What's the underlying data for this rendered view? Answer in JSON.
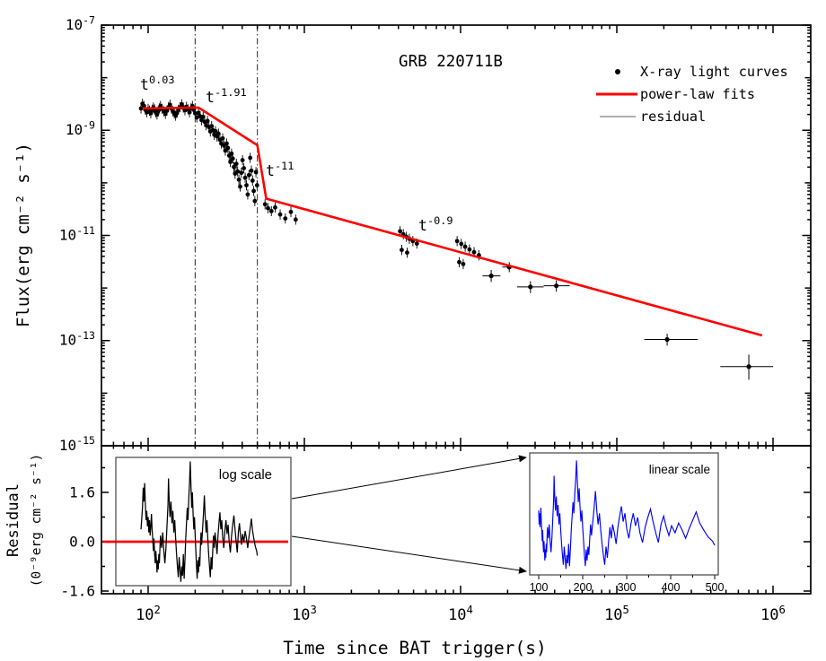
{
  "figure": {
    "title": "GRB 220711B"
  },
  "legend": {
    "items": [
      {
        "label": "X-ray light curves",
        "marker": "dot",
        "color": "#000000"
      },
      {
        "label": "power-law fits",
        "marker": "thick-line",
        "color": "#ff0000"
      },
      {
        "label": "residual",
        "marker": "thin-line",
        "color": "#808080"
      }
    ]
  },
  "axes": {
    "x": {
      "label": "Time since BAT trigger(s)",
      "scale": "log",
      "ticks": [
        {
          "v": 100,
          "label": "10^2"
        },
        {
          "v": 1000,
          "label": "10^3"
        },
        {
          "v": 10000,
          "label": "10^4"
        },
        {
          "v": 100000,
          "label": "10^5"
        },
        {
          "v": 1000000,
          "label": "10^6"
        }
      ]
    },
    "y": {
      "label": "Flux(erg cm⁻² s⁻¹)",
      "scale": "log",
      "ticks": [
        {
          "v": 1e-07,
          "label": "10^-7"
        },
        {
          "v": 1e-09,
          "label": "10^-9"
        },
        {
          "v": 1e-11,
          "label": "10^-11"
        },
        {
          "v": 1e-13,
          "label": "10^-13"
        },
        {
          "v": 1e-15,
          "label": "10^-15"
        }
      ]
    },
    "residual_y": {
      "label_line1": "Residual",
      "label_line2": "(0⁻⁹erg cm⁻² s⁻¹)",
      "ticks": [
        {
          "v": 1.6,
          "label": "1.6"
        },
        {
          "v": 0,
          "label": "0.0"
        },
        {
          "v": -1.6,
          "label": "-1.6"
        }
      ],
      "minor": [
        2.4,
        0.8,
        -0.8
      ]
    }
  },
  "chart_data": {
    "type": "scatter",
    "title": "GRB 220711B",
    "xlabel": "Time since BAT trigger(s)",
    "ylabel": "Flux(erg cm⁻² s⁻¹)",
    "xscale": "log",
    "yscale": "log",
    "xlim": [
      50,
      1750000
    ],
    "ylim": [
      1e-15,
      1e-07
    ],
    "vlines": [
      200,
      500
    ],
    "annotations": [
      {
        "text": "t^0.03"
      },
      {
        "text": "t^-1.91"
      },
      {
        "text": "t^-11"
      },
      {
        "text": "t^-0.9"
      }
    ],
    "series": [
      {
        "name": "X-ray light curves",
        "type": "scatter",
        "color": "#000000",
        "points": [
          [
            90,
            2.6e-09
          ],
          [
            92,
            3.2e-09
          ],
          [
            94,
            2.9e-09
          ],
          [
            96,
            2.45e-09
          ],
          [
            98,
            2.2e-09
          ],
          [
            100,
            2.55e-09
          ],
          [
            102,
            2.35e-09
          ],
          [
            104,
            2.1e-09
          ],
          [
            106,
            2.45e-09
          ],
          [
            108,
            2.7e-09
          ],
          [
            110,
            2.5e-09
          ],
          [
            112,
            2.2e-09
          ],
          [
            114,
            2e-09
          ],
          [
            116,
            2.3e-09
          ],
          [
            118,
            2.6e-09
          ],
          [
            120,
            2.9e-09
          ],
          [
            123,
            2.55e-09
          ],
          [
            126,
            2.3e-09
          ],
          [
            129,
            2.05e-09
          ],
          [
            132,
            2.35e-09
          ],
          [
            135,
            2.75e-09
          ],
          [
            138,
            3.05e-09
          ],
          [
            141,
            2.6e-09
          ],
          [
            144,
            2.3e-09
          ],
          [
            147,
            2.1e-09
          ],
          [
            150,
            1.9e-09
          ],
          [
            153,
            2.15e-09
          ],
          [
            156,
            2.45e-09
          ],
          [
            160,
            2.75e-09
          ],
          [
            164,
            3.1e-09
          ],
          [
            168,
            2.7e-09
          ],
          [
            172,
            2.4e-09
          ],
          [
            176,
            2.8e-09
          ],
          [
            180,
            2.5e-09
          ],
          [
            184,
            2.2e-09
          ],
          [
            188,
            2.6e-09
          ],
          [
            192,
            2.9e-09
          ],
          [
            196,
            2.45e-09
          ],
          [
            200,
            2.1e-09
          ],
          [
            205,
            1.75e-09
          ],
          [
            210,
            2.15e-09
          ],
          [
            215,
            1.85e-09
          ],
          [
            220,
            1.55e-09
          ],
          [
            225,
            1.8e-09
          ],
          [
            230,
            1.45e-09
          ],
          [
            235,
            1.25e-09
          ],
          [
            240,
            1.5e-09
          ],
          [
            245,
            1.15e-09
          ],
          [
            250,
            9.5e-10
          ],
          [
            255,
            1.2e-09
          ],
          [
            260,
            1e-09
          ],
          [
            265,
            8.2e-10
          ],
          [
            270,
            9.6e-10
          ],
          [
            276,
            7.6e-10
          ],
          [
            282,
            8.6e-10
          ],
          [
            288,
            6.6e-10
          ],
          [
            294,
            5.6e-10
          ],
          [
            300,
            7e-10
          ],
          [
            306,
            5.1e-10
          ],
          [
            312,
            4.1e-10
          ],
          [
            318,
            5.6e-10
          ],
          [
            324,
            4.6e-10
          ],
          [
            330,
            3.3e-10
          ],
          [
            336,
            2.5e-10
          ],
          [
            342,
            3.6e-10
          ],
          [
            348,
            2.9e-10
          ],
          [
            354,
            2e-10
          ],
          [
            360,
            1.5e-10
          ],
          [
            367,
            2.3e-10
          ],
          [
            374,
            1.65e-10
          ],
          [
            381,
            1.15e-10
          ],
          [
            388,
            8.5e-11
          ],
          [
            395,
            1.55e-10
          ],
          [
            402,
            2.7e-10
          ],
          [
            410,
            1.9e-10
          ],
          [
            418,
            1.25e-10
          ],
          [
            426,
            9e-11
          ],
          [
            434,
            6e-11
          ],
          [
            442,
            1.4e-10
          ],
          [
            450,
            3e-10
          ],
          [
            458,
            1.7e-10
          ],
          [
            466,
            1.1e-10
          ],
          [
            474,
            7e-11
          ],
          [
            482,
            4.5e-11
          ],
          [
            490,
            1.6e-10
          ],
          [
            498,
            9e-11
          ],
          [
            560,
            3.9e-11
          ],
          [
            585,
            3.3e-11
          ],
          [
            615,
            2.9e-11
          ],
          [
            650,
            3.4e-11
          ],
          [
            700,
            2.5e-11
          ],
          [
            755,
            2.1e-11
          ],
          [
            820,
            2.8e-11
          ],
          [
            880,
            2e-11
          ],
          [
            4100,
            1.2e-11
          ],
          [
            4300,
            1.05e-11
          ],
          [
            4500,
            9.4e-12
          ],
          [
            4700,
            8.6e-12
          ],
          [
            4950,
            7.8e-12
          ],
          [
            5250,
            7e-12
          ],
          [
            4200,
            5.3e-12
          ],
          [
            4550,
            4.7e-12
          ],
          [
            9500,
            7.8e-12
          ],
          [
            10100,
            6.9e-12
          ],
          [
            10700,
            6.1e-12
          ],
          [
            11400,
            5.4e-12
          ],
          [
            12200,
            4.8e-12
          ],
          [
            13100,
            4.2e-12
          ],
          [
            9800,
            3.1e-12
          ],
          [
            10400,
            2.85e-12
          ]
        ]
      },
      {
        "name": "power-law fits",
        "type": "line",
        "color": "#ff0000",
        "breakpoints": [
          [
            92,
            2.6e-09
          ],
          [
            210,
            2.7e-09
          ],
          [
            500,
            5.2e-10
          ],
          [
            570,
            5e-11
          ],
          [
            850000,
            1.25e-13
          ]
        ]
      }
    ],
    "late_points": [
      [
        15700,
        1.7e-12,
        13800,
        18000,
        1.3e-12,
        2.2e-12
      ],
      [
        20500,
        2.5e-12,
        18500,
        23000,
        2e-12,
        3.1e-12
      ],
      [
        28000,
        1.05e-12,
        23000,
        34000,
        8e-13,
        1.35e-12
      ],
      [
        41000,
        1.1e-12,
        34000,
        50000,
        8.5e-13,
        1.4e-12
      ],
      [
        210000,
        1.05e-13,
        150000,
        330000,
        8e-14,
        1.35e-13
      ],
      [
        700000,
        3.2e-14,
        460000,
        1000000,
        1.8e-14,
        5.4e-14
      ]
    ],
    "residual_series": [
      [
        90,
        0.4
      ],
      [
        92,
        1.1
      ],
      [
        93,
        1.75
      ],
      [
        94,
        1.3
      ],
      [
        95,
        1.9
      ],
      [
        96,
        1.2
      ],
      [
        97,
        0.7
      ],
      [
        98,
        1.0
      ],
      [
        99,
        0.5
      ],
      [
        100,
        0.8
      ],
      [
        101,
        0.3
      ],
      [
        102,
        0.7
      ],
      [
        103,
        0.2
      ],
      [
        104,
        0.5
      ],
      [
        105,
        0.9
      ],
      [
        106,
        0.4
      ],
      [
        107,
        0.1
      ],
      [
        108,
        -0.3
      ],
      [
        109,
        0.1
      ],
      [
        110,
        -0.4
      ],
      [
        111,
        -0.7
      ],
      [
        112,
        -0.3
      ],
      [
        113,
        -0.6
      ],
      [
        114,
        -1.0
      ],
      [
        115,
        -0.6
      ],
      [
        116,
        -0.9
      ],
      [
        117,
        -0.4
      ],
      [
        118,
        -0.7
      ],
      [
        119,
        -0.2
      ],
      [
        120,
        0.2
      ],
      [
        122,
        -0.2
      ],
      [
        124,
        0.3
      ],
      [
        126,
        -0.3
      ],
      [
        128,
        -0.7
      ],
      [
        130,
        -0.2
      ],
      [
        132,
        0.5
      ],
      [
        134,
        1.2
      ],
      [
        135,
        2.05
      ],
      [
        136,
        1.5
      ],
      [
        138,
        0.8
      ],
      [
        140,
        1.3
      ],
      [
        142,
        0.6
      ],
      [
        144,
        1.0
      ],
      [
        146,
        0.3
      ],
      [
        148,
        0.7
      ],
      [
        150,
        0.1
      ],
      [
        152,
        -0.4
      ],
      [
        154,
        -0.8
      ],
      [
        156,
        -1.15
      ],
      [
        158,
        -0.5
      ],
      [
        160,
        -0.9
      ],
      [
        162,
        -1.3
      ],
      [
        164,
        -0.8
      ],
      [
        166,
        -1.1
      ],
      [
        168,
        -0.4
      ],
      [
        170,
        -1.2
      ],
      [
        172,
        -0.6
      ],
      [
        174,
        0.1
      ],
      [
        176,
        0.6
      ],
      [
        178,
        1.1
      ],
      [
        180,
        0.7
      ],
      [
        182,
        1.4
      ],
      [
        184,
        1.9
      ],
      [
        186,
        2.6
      ],
      [
        188,
        1.8
      ],
      [
        190,
        1.1
      ],
      [
        192,
        1.6
      ],
      [
        194,
        0.9
      ],
      [
        196,
        0.4
      ],
      [
        198,
        0.8
      ],
      [
        200,
        0.2
      ],
      [
        202,
        -0.3
      ],
      [
        204,
        -0.8
      ],
      [
        206,
        -1.2
      ],
      [
        208,
        -0.6
      ],
      [
        210,
        -1.0
      ],
      [
        212,
        -0.5
      ],
      [
        214,
        -0.8
      ],
      [
        216,
        -0.2
      ],
      [
        218,
        0.3
      ],
      [
        220,
        -0.1
      ],
      [
        223,
        0.4
      ],
      [
        226,
        0.9
      ],
      [
        229,
        1.5
      ],
      [
        232,
        0.8
      ],
      [
        235,
        0.3
      ],
      [
        238,
        0.7
      ],
      [
        241,
        0.1
      ],
      [
        244,
        -0.4
      ],
      [
        247,
        -0.8
      ],
      [
        250,
        -1.15
      ],
      [
        253,
        -0.5
      ],
      [
        256,
        -0.9
      ],
      [
        259,
        -0.3
      ],
      [
        262,
        0.2
      ],
      [
        265,
        -0.2
      ],
      [
        268,
        0.3
      ],
      [
        272,
        0.0
      ],
      [
        276,
        -0.4
      ],
      [
        280,
        0.2
      ],
      [
        284,
        0.6
      ],
      [
        288,
        0.95
      ],
      [
        292,
        0.4
      ],
      [
        296,
        0.7
      ],
      [
        300,
        0.15
      ],
      [
        305,
        -0.2
      ],
      [
        310,
        0.35
      ],
      [
        315,
        0.7
      ],
      [
        320,
        0.25
      ],
      [
        325,
        0.55
      ],
      [
        330,
        0.0
      ],
      [
        336,
        -0.35
      ],
      [
        342,
        0.2
      ],
      [
        348,
        0.55
      ],
      [
        354,
        0.85
      ],
      [
        360,
        0.4
      ],
      [
        366,
        0.0
      ],
      [
        372,
        -0.35
      ],
      [
        378,
        0.3
      ],
      [
        384,
        0.6
      ],
      [
        390,
        0.2
      ],
      [
        396,
        -0.1
      ],
      [
        402,
        0.25
      ],
      [
        410,
        0.0
      ],
      [
        418,
        0.35
      ],
      [
        426,
        0.1
      ],
      [
        434,
        -0.2
      ],
      [
        442,
        0.15
      ],
      [
        450,
        0.45
      ],
      [
        458,
        0.75
      ],
      [
        466,
        0.35
      ],
      [
        475,
        0.1
      ],
      [
        485,
        -0.15
      ],
      [
        495,
        -0.3
      ],
      [
        500,
        -0.45
      ]
    ],
    "insets": [
      {
        "label": "log scale",
        "xscale": "log",
        "curve_color": "#000000",
        "zero_line_color": "#ff0000"
      },
      {
        "label": "linear scale",
        "xscale": "linear",
        "curve_color": "#0000ff",
        "xticks": [
          {
            "v": 100,
            "label": "100"
          },
          {
            "v": 200,
            "label": "200"
          },
          {
            "v": 300,
            "label": "300"
          },
          {
            "v": 400,
            "label": "400"
          },
          {
            "v": 500,
            "label": "500"
          }
        ]
      }
    ]
  }
}
